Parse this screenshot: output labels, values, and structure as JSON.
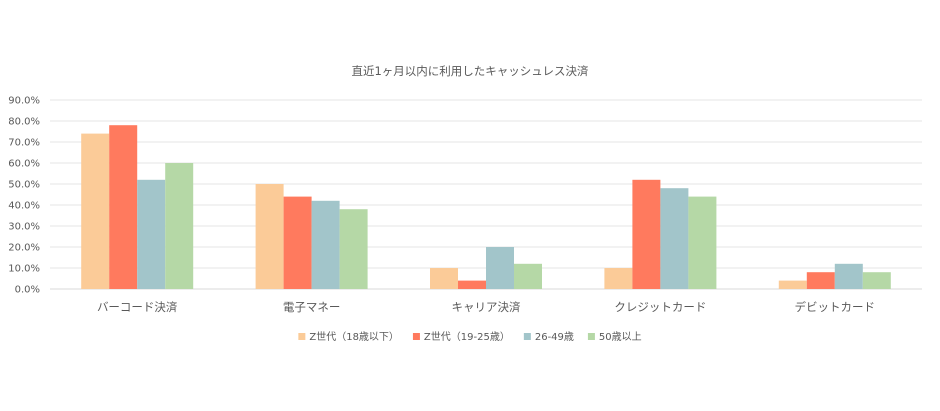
{
  "chart_data": {
    "type": "bar",
    "title": "直近1ヶ月以内に利用したキャッシュレス決済",
    "categories": [
      "バーコード決済",
      "電子マネー",
      "キャリア決済",
      "クレジットカード",
      "デビットカード"
    ],
    "series": [
      {
        "name": "Z世代（18歳以下）",
        "color": "#FBCB98",
        "values": [
          74,
          50,
          10,
          10,
          4
        ]
      },
      {
        "name": "Z世代（19-25歳）",
        "color": "#FF7A5E",
        "values": [
          78,
          44,
          4,
          52,
          8
        ]
      },
      {
        "name": "26-49歳",
        "color": "#A2C5CA",
        "values": [
          52,
          42,
          20,
          48,
          12
        ]
      },
      {
        "name": "50歳以上",
        "color": "#B5D8A6",
        "values": [
          60,
          38,
          12,
          44,
          8
        ]
      }
    ],
    "ylim": [
      0,
      90
    ],
    "yticks": [
      "0.0%",
      "10.0%",
      "20.0%",
      "30.0%",
      "40.0%",
      "50.0%",
      "60.0%",
      "70.0%",
      "80.0%",
      "90.0%"
    ],
    "grid": true,
    "legend_position": "bottom"
  }
}
